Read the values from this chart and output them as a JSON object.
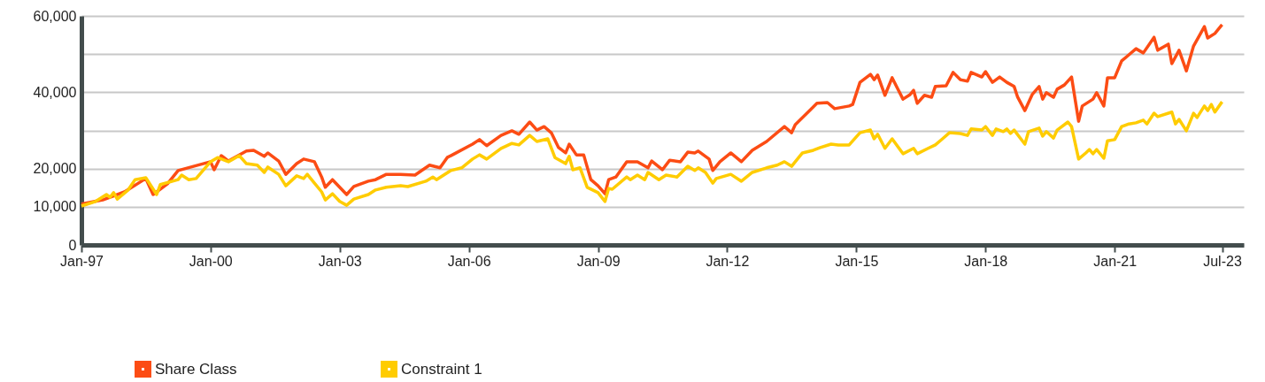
{
  "chart_data": {
    "type": "line",
    "xlim": [
      "1997-01",
      "2024-01"
    ],
    "xticks": [
      {
        "value": "1997-01",
        "label": "Jan-97"
      },
      {
        "value": "2000-01",
        "label": "Jan-00"
      },
      {
        "value": "2003-01",
        "label": "Jan-03"
      },
      {
        "value": "2006-01",
        "label": "Jan-06"
      },
      {
        "value": "2009-01",
        "label": "Jan-09"
      },
      {
        "value": "2012-01",
        "label": "Jan-12"
      },
      {
        "value": "2015-01",
        "label": "Jan-15"
      },
      {
        "value": "2018-01",
        "label": "Jan-18"
      },
      {
        "value": "2021-01",
        "label": "Jan-21"
      },
      {
        "value": "2023-07",
        "label": "Jul-23"
      }
    ],
    "ylim": [
      0,
      60000
    ],
    "yticks": [
      0,
      {
        "value": 10000,
        "label": "10,000"
      },
      {
        "value": 20000,
        "label": "20,000"
      },
      {
        "value": 30000,
        "label": null
      },
      {
        "value": 40000,
        "label": "40,000"
      },
      {
        "value": 50000,
        "label": null
      },
      {
        "value": 60000,
        "label": "60,000"
      }
    ],
    "grid": "y",
    "legend": "bottom left",
    "marker": "none",
    "line_style": "solid",
    "series": [
      {
        "name": "Share Class",
        "color": "#fc4c14",
        "x": [
          "1997-01",
          "1997-07",
          "1998-01",
          "1998-07",
          "1998-09",
          "1999-01",
          "1999-04",
          "2000-01",
          "2000-02",
          "2000-04",
          "2000-06",
          "2000-11",
          "2001-01",
          "2001-04",
          "2001-05",
          "2001-08",
          "2001-10",
          "2002-01",
          "2002-03",
          "2002-06",
          "2002-08",
          "2002-09",
          "2002-11",
          "2003-03",
          "2003-05",
          "2003-09",
          "2003-11",
          "2004-02",
          "2004-06",
          "2004-10",
          "2005-02",
          "2005-05",
          "2005-07",
          "2005-09",
          "2006-02",
          "2006-04",
          "2006-06",
          "2006-10",
          "2007-01",
          "2007-03",
          "2007-06",
          "2007-08",
          "2007-10",
          "2007-12",
          "2008-02",
          "2008-04",
          "2008-05",
          "2008-07",
          "2008-09",
          "2008-11",
          "2009-01",
          "2009-03",
          "2009-04",
          "2009-06",
          "2009-09",
          "2009-12",
          "2010-03",
          "2010-04",
          "2010-07",
          "2010-09",
          "2010-12",
          "2011-02",
          "2011-04",
          "2011-05",
          "2011-08",
          "2011-09",
          "2011-11",
          "2012-02",
          "2012-05",
          "2012-08",
          "2012-12",
          "2013-05",
          "2013-07",
          "2013-08",
          "2013-12",
          "2014-02",
          "2014-05",
          "2014-07",
          "2014-11",
          "2014-12",
          "2015-02",
          "2015-05",
          "2015-06",
          "2015-07",
          "2015-09",
          "2015-11",
          "2016-02",
          "2016-04",
          "2016-05",
          "2016-06",
          "2016-08",
          "2016-10",
          "2016-11",
          "2017-02",
          "2017-04",
          "2017-06",
          "2017-08",
          "2017-09",
          "2017-12",
          "2018-01",
          "2018-03",
          "2018-05",
          "2018-07",
          "2018-09",
          "2018-10",
          "2018-12",
          "2019-02",
          "2019-04",
          "2019-05",
          "2019-06",
          "2019-08",
          "2019-09",
          "2019-11",
          "2020-01",
          "2020-03",
          "2020-04",
          "2020-07",
          "2020-08",
          "2020-10",
          "2020-11",
          "2021-01",
          "2021-03",
          "2021-05",
          "2021-07",
          "2021-09",
          "2021-12",
          "2022-01",
          "2022-04",
          "2022-05",
          "2022-07",
          "2022-09",
          "2022-11",
          "2023-02",
          "2023-03",
          "2023-05",
          "2023-07"
        ],
        "values": [
          10700,
          11800,
          13900,
          17400,
          13200,
          16000,
          19500,
          21800,
          19700,
          23400,
          22000,
          24600,
          24800,
          23200,
          24100,
          22000,
          18500,
          21300,
          22500,
          21800,
          17800,
          15100,
          17100,
          13200,
          15300,
          16700,
          17100,
          18500,
          18500,
          18300,
          20900,
          20200,
          22900,
          23900,
          26400,
          27600,
          26000,
          28700,
          29900,
          29000,
          32200,
          30100,
          31000,
          29400,
          25500,
          24100,
          26400,
          23600,
          23600,
          17100,
          15500,
          13400,
          17100,
          17800,
          21800,
          21800,
          20200,
          22000,
          19700,
          22200,
          21800,
          24300,
          24100,
          24600,
          22500,
          19500,
          21800,
          24100,
          21800,
          24800,
          27100,
          31000,
          29400,
          31500,
          35200,
          37100,
          37300,
          35700,
          36400,
          36800,
          42600,
          44700,
          43300,
          44500,
          39200,
          43800,
          38200,
          39400,
          40500,
          37100,
          39200,
          38700,
          41500,
          41700,
          45200,
          43300,
          42900,
          45200,
          44000,
          45400,
          42600,
          44000,
          42600,
          41500,
          38700,
          35200,
          39400,
          41500,
          38200,
          39900,
          38700,
          40800,
          41900,
          44000,
          32400,
          36400,
          38200,
          39900,
          36400,
          43800,
          43800,
          48200,
          49800,
          51400,
          50300,
          54400,
          51000,
          52600,
          47500,
          51000,
          45600,
          52100,
          57200,
          54200,
          55400,
          57700
        ]
      },
      {
        "name": "Constraint 1",
        "color": "#ffcc00",
        "x": [
          "1997-01",
          "1997-05",
          "1997-08",
          "1997-09",
          "1997-10",
          "1997-11",
          "1998-02",
          "1998-04",
          "1998-07",
          "1998-10",
          "1998-11",
          "1999-04",
          "1999-05",
          "1999-07",
          "1999-09",
          "2000-01",
          "2000-03",
          "2000-06",
          "2000-09",
          "2000-11",
          "2001-02",
          "2001-04",
          "2001-05",
          "2001-08",
          "2001-10",
          "2002-01",
          "2002-03",
          "2002-04",
          "2002-06",
          "2002-08",
          "2002-09",
          "2002-11",
          "2003-01",
          "2003-03",
          "2003-05",
          "2003-09",
          "2003-11",
          "2004-02",
          "2004-06",
          "2004-08",
          "2005-01",
          "2005-03",
          "2005-04",
          "2005-08",
          "2005-11",
          "2006-02",
          "2006-04",
          "2006-06",
          "2006-10",
          "2007-01",
          "2007-03",
          "2007-06",
          "2007-08",
          "2007-11",
          "2008-01",
          "2008-04",
          "2008-05",
          "2008-06",
          "2008-08",
          "2008-10",
          "2009-01",
          "2009-03",
          "2009-04",
          "2009-05",
          "2009-09",
          "2009-10",
          "2009-12",
          "2010-02",
          "2010-03",
          "2010-06",
          "2010-08",
          "2010-11",
          "2011-02",
          "2011-04",
          "2011-05",
          "2011-07",
          "2011-09",
          "2011-10",
          "2012-02",
          "2012-05",
          "2012-08",
          "2012-12",
          "2013-03",
          "2013-05",
          "2013-07",
          "2013-08",
          "2013-10",
          "2014-01",
          "2014-03",
          "2014-06",
          "2014-08",
          "2014-11",
          "2015-02",
          "2015-05",
          "2015-06",
          "2015-07",
          "2015-09",
          "2015-11",
          "2016-02",
          "2016-05",
          "2016-06",
          "2016-09",
          "2016-11",
          "2017-01",
          "2017-03",
          "2017-06",
          "2017-08",
          "2017-09",
          "2017-12",
          "2018-01",
          "2018-03",
          "2018-04",
          "2018-06",
          "2018-07",
          "2018-08",
          "2018-09",
          "2018-12",
          "2019-01",
          "2019-04",
          "2019-05",
          "2019-06",
          "2019-08",
          "2019-09",
          "2019-12",
          "2020-01",
          "2020-03",
          "2020-05",
          "2020-06",
          "2020-07",
          "2020-08",
          "2020-10",
          "2020-11",
          "2021-01",
          "2021-03",
          "2021-05",
          "2021-07",
          "2021-09",
          "2021-10",
          "2021-12",
          "2022-01",
          "2022-05",
          "2022-06",
          "2022-07",
          "2022-09",
          "2022-11",
          "2022-12",
          "2023-02",
          "2023-03",
          "2023-04",
          "2023-05",
          "2023-07"
        ],
        "values": [
          10200,
          11400,
          13200,
          12500,
          13700,
          12000,
          14400,
          17100,
          17600,
          13200,
          15800,
          17100,
          18300,
          17100,
          17400,
          21800,
          22900,
          21800,
          23400,
          21300,
          20900,
          19000,
          20400,
          18500,
          15500,
          18100,
          17400,
          18500,
          16200,
          13900,
          11800,
          13400,
          11400,
          10400,
          12000,
          13200,
          14400,
          15100,
          15500,
          15300,
          16700,
          17800,
          17100,
          19500,
          20200,
          22500,
          23600,
          22500,
          25300,
          26600,
          26200,
          28700,
          27100,
          27800,
          22900,
          21300,
          23200,
          19700,
          20200,
          15100,
          13700,
          11400,
          14800,
          14600,
          17800,
          17100,
          18300,
          17100,
          19000,
          17100,
          18300,
          17800,
          20600,
          19500,
          20200,
          19000,
          16200,
          17400,
          18500,
          16700,
          19000,
          20200,
          20900,
          21800,
          20600,
          21800,
          24100,
          24800,
          25500,
          26400,
          26200,
          26200,
          29400,
          30100,
          27800,
          29000,
          25300,
          27800,
          23900,
          25300,
          23900,
          25300,
          26200,
          27800,
          29400,
          29200,
          28700,
          30400,
          30100,
          31000,
          28700,
          30400,
          29700,
          30400,
          29200,
          30100,
          26400,
          29700,
          30600,
          28500,
          29700,
          28000,
          30100,
          32200,
          31000,
          22500,
          24100,
          25000,
          23900,
          25000,
          22700,
          27300,
          27600,
          31000,
          31700,
          32000,
          32700,
          31700,
          34500,
          33600,
          34800,
          31700,
          32900,
          29900,
          34500,
          33400,
          36400,
          35200,
          36800,
          34800,
          37500
        ]
      }
    ]
  }
}
